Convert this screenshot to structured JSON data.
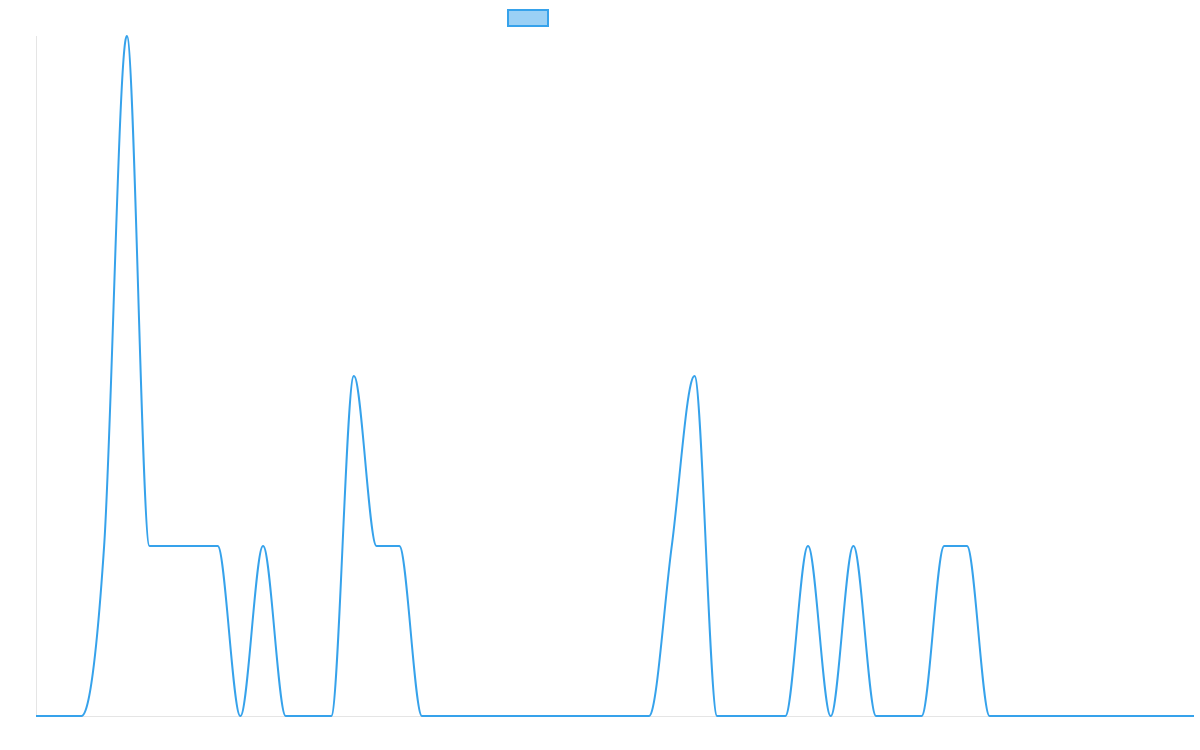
{
  "chart_data": {
    "type": "line",
    "title": "",
    "xlabel": "",
    "ylabel": "",
    "grid": false,
    "legend": {
      "position": "top",
      "entries": [
        {
          "label": "",
          "color": "#36a2eb"
        }
      ]
    },
    "xlim": [
      0,
      51
    ],
    "ylim": [
      0,
      4
    ],
    "x": [
      0,
      1,
      2,
      3,
      4,
      5,
      6,
      7,
      8,
      9,
      10,
      11,
      12,
      13,
      14,
      15,
      16,
      17,
      18,
      19,
      20,
      21,
      22,
      23,
      24,
      25,
      26,
      27,
      28,
      29,
      30,
      31,
      32,
      33,
      34,
      35,
      36,
      37,
      38,
      39,
      40,
      41,
      42,
      43,
      44,
      45,
      46,
      47,
      48,
      49,
      50,
      51
    ],
    "series": [
      {
        "color": "#36a2eb",
        "fill": "#9ad0f5",
        "values": [
          0,
          0,
          0,
          1,
          4,
          1,
          1,
          1,
          1,
          0,
          1,
          0,
          0,
          0,
          2,
          1,
          1,
          0,
          0,
          0,
          0,
          0,
          0,
          0,
          0,
          0,
          0,
          0,
          1,
          2,
          0,
          0,
          0,
          0,
          1,
          0,
          1,
          0,
          0,
          0,
          1,
          1,
          0,
          0,
          0,
          0,
          0,
          0,
          0,
          0,
          0,
          0
        ]
      }
    ]
  }
}
